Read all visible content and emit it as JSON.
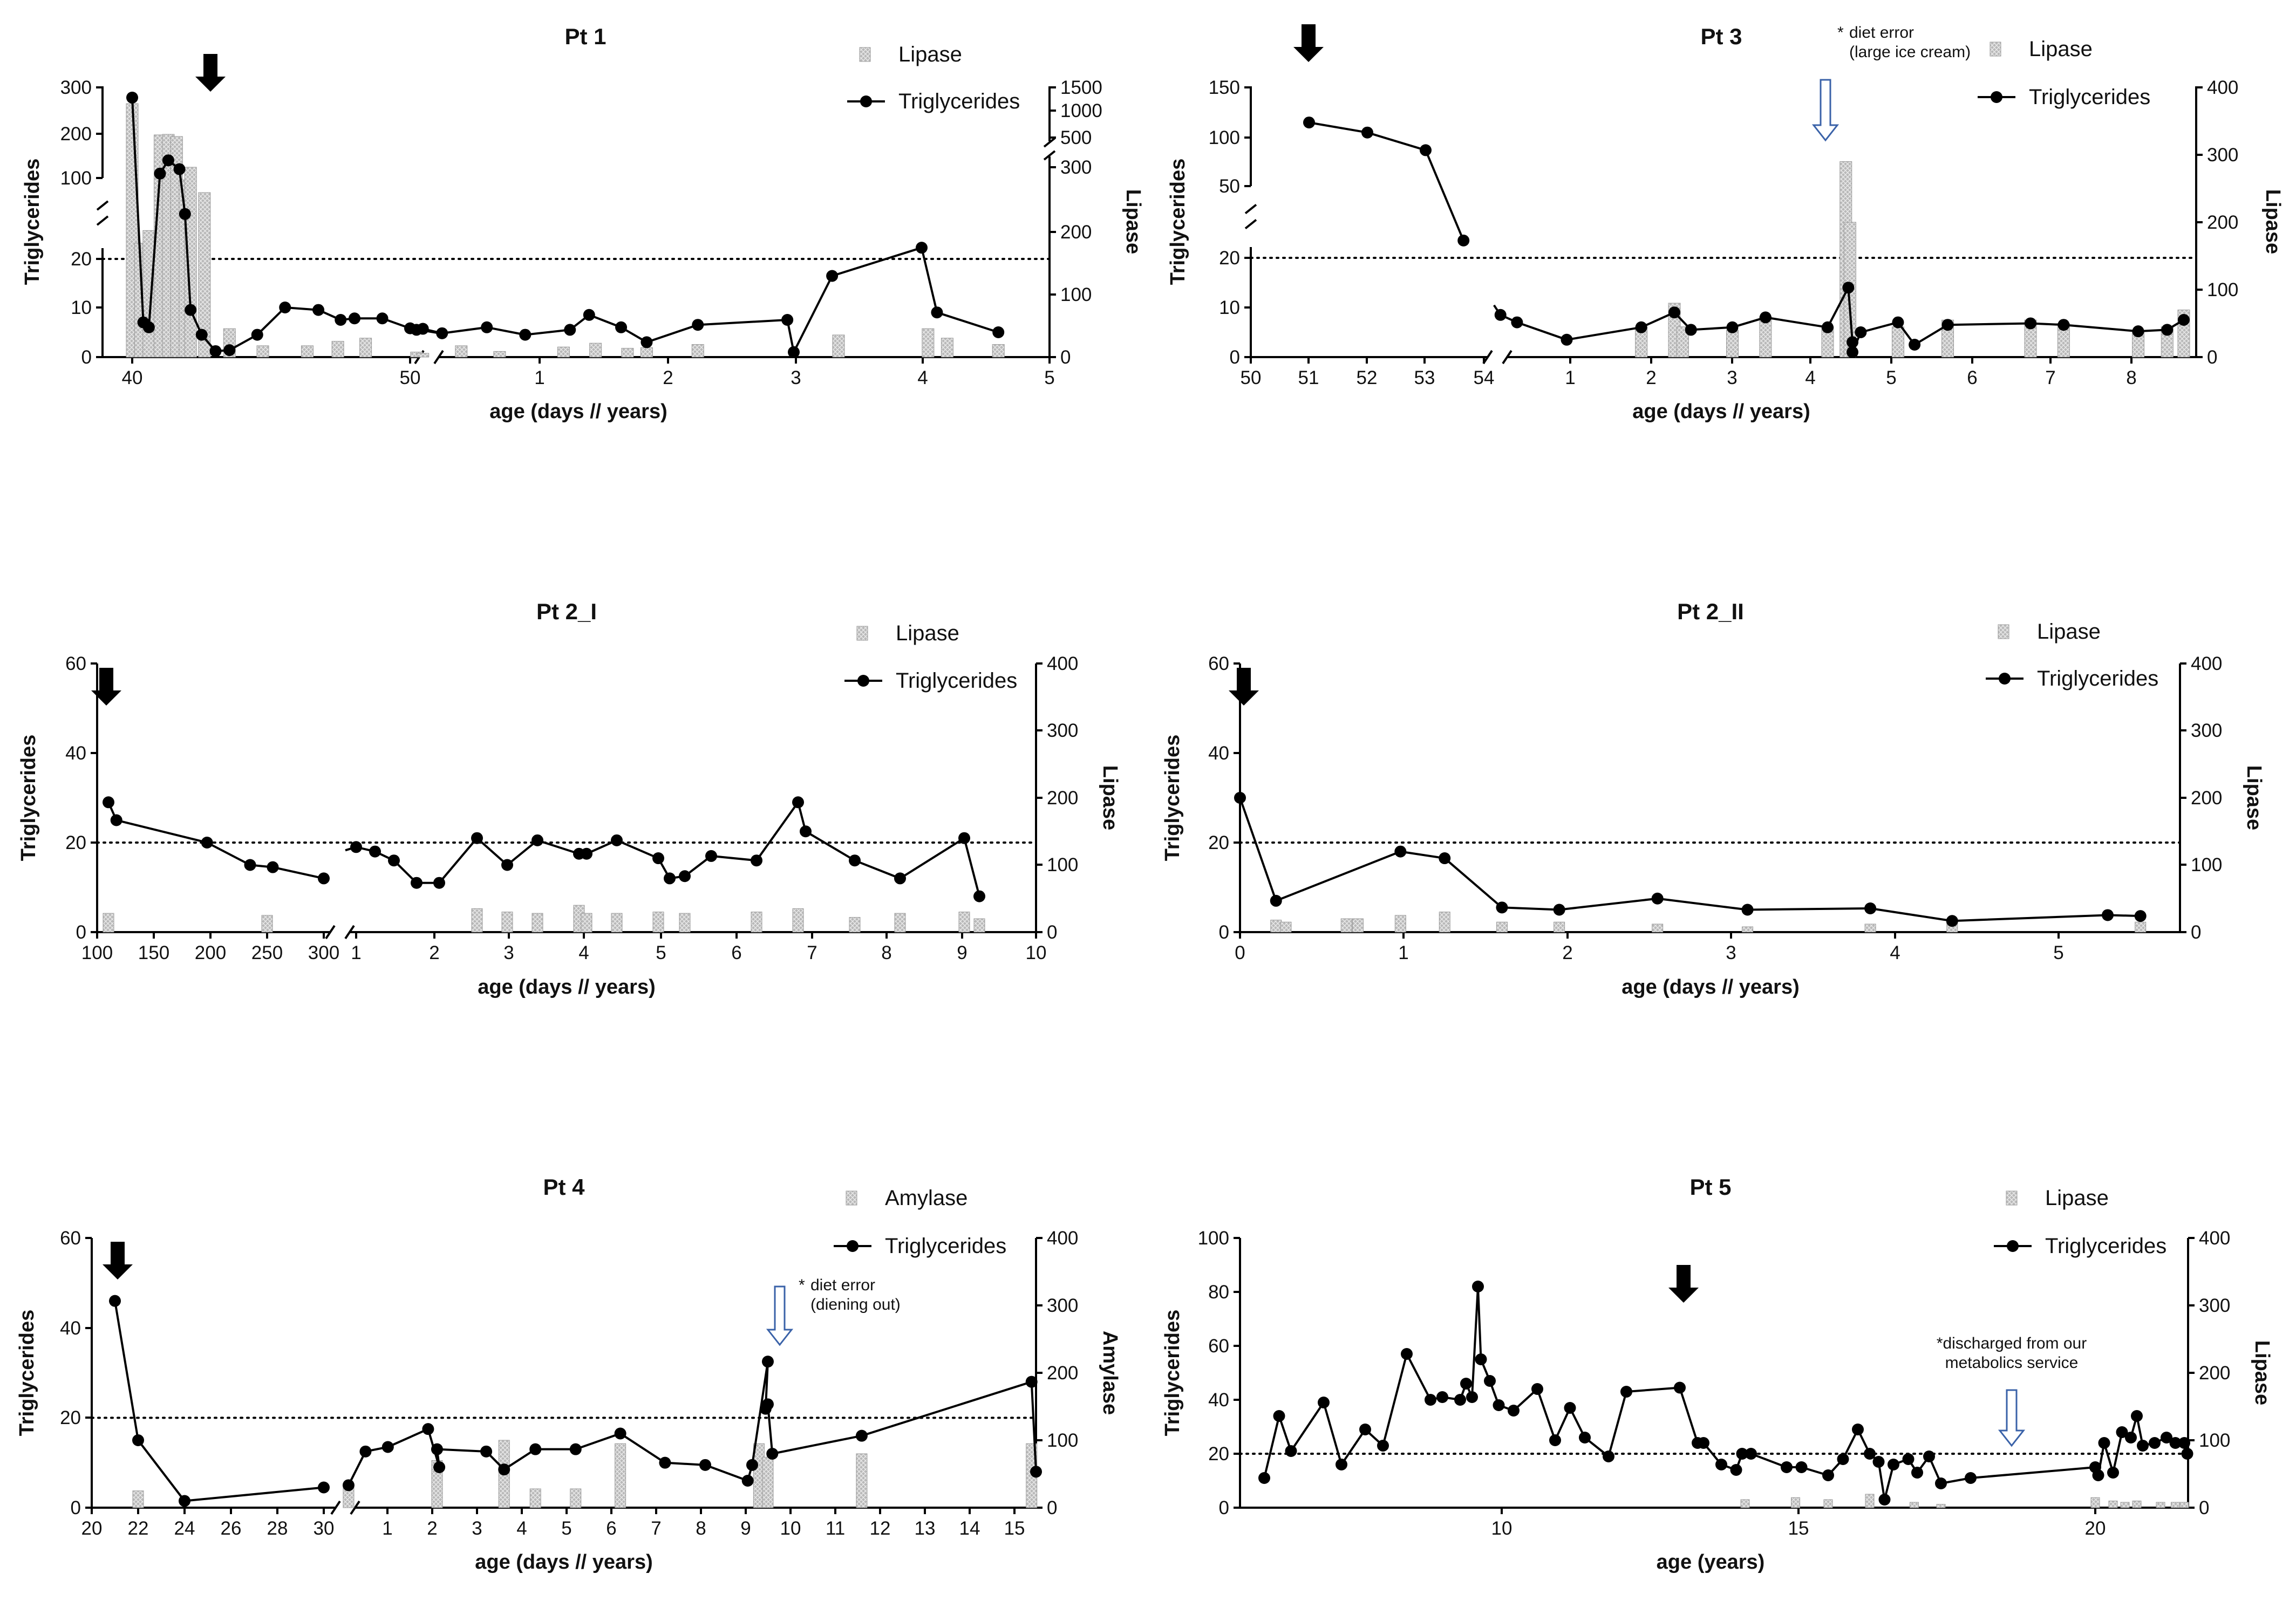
{
  "figure": {
    "panels": [
      {
        "id": "pt1",
        "title": "Pt 1",
        "ylabel": "Triglycerides",
        "y2label": "Lipase",
        "xlabel": "age (days // years)",
        "legend": {
          "bars": "Lipase",
          "line": "Triglycerides"
        }
      },
      {
        "id": "pt3",
        "title": "Pt 3",
        "ylabel": "Triglycerides",
        "y2label": "Lipase",
        "xlabel": "age (days // years)",
        "legend": {
          "bars": "Lipase",
          "line": "Triglycerides"
        },
        "annotation": {
          "star": "*",
          "lines": [
            "diet error",
            "(large ice cream)"
          ]
        }
      },
      {
        "id": "pt2i",
        "title": "Pt 2_I",
        "ylabel": "Triglycerides",
        "y2label": "Lipase",
        "xlabel": "age (days // years)",
        "legend": {
          "bars": "Lipase",
          "line": "Triglycerides"
        }
      },
      {
        "id": "pt2ii",
        "title": "Pt 2_II",
        "ylabel": "Triglycerides",
        "y2label": "Lipase",
        "xlabel": "age (days // years)",
        "legend": {
          "bars": "Lipase",
          "line": "Triglycerides"
        }
      },
      {
        "id": "pt4",
        "title": "Pt 4",
        "ylabel": "Triglycerides",
        "y2label": "Amylase",
        "xlabel": "age (days // years)",
        "legend": {
          "bars": "Amylase",
          "line": "Triglycerides"
        },
        "annotation": {
          "star": "*",
          "lines": [
            "diet error",
            "(diening out)"
          ]
        }
      },
      {
        "id": "pt5",
        "title": "Pt 5",
        "ylabel": "Triglycerides",
        "y2label": "Lipase",
        "xlabel": "age (years)",
        "legend": {
          "bars": "Lipase",
          "line": "Triglycerides"
        },
        "annotation": {
          "star": "",
          "lines": [
            "*discharged from our",
            "metabolics service"
          ]
        }
      }
    ]
  },
  "chart_data": [
    {
      "panel": "pt1",
      "type": "bar+line",
      "title": "Pt 1",
      "threshold": 20,
      "y_ticks": [
        "0",
        "10",
        "20",
        "100",
        "200",
        "300"
      ],
      "y2_ticks": [
        "0",
        "100",
        "200",
        "300",
        "500",
        "1000",
        "1500"
      ],
      "x_ticks": [
        "40",
        "50",
        "1",
        "2",
        "3",
        "4",
        "5"
      ],
      "triglycerides": [
        [
          40,
          278
        ],
        [
          40.4,
          7
        ],
        [
          40.6,
          6
        ],
        [
          41,
          110
        ],
        [
          41.3,
          140
        ],
        [
          41.7,
          120
        ],
        [
          41.9,
          60
        ],
        [
          42.1,
          9.5
        ],
        [
          42.5,
          4.5
        ],
        [
          43,
          1.2
        ],
        [
          43.5,
          1.4
        ],
        [
          44.5,
          4.5
        ],
        [
          45.5,
          10
        ],
        [
          46.7,
          9.5
        ],
        [
          47.5,
          7.5
        ],
        [
          48,
          7.8
        ],
        [
          49,
          7.8
        ],
        [
          50,
          5.8
        ],
        [
          0.05,
          5.5
        ],
        [
          0.1,
          5.7
        ],
        [
          0.25,
          4.8
        ],
        [
          0.6,
          6
        ],
        [
          0.9,
          4.5
        ],
        [
          1.25,
          5.5
        ],
        [
          1.4,
          8.5
        ],
        [
          1.65,
          6
        ],
        [
          1.85,
          3
        ],
        [
          2.25,
          6.5
        ],
        [
          2.95,
          7.5
        ],
        [
          3,
          1
        ],
        [
          3.3,
          16.5
        ],
        [
          4,
          22.5
        ],
        [
          4.12,
          9
        ],
        [
          4.6,
          5
        ]
      ],
      "lipase": [
        [
          40,
          1150
        ],
        [
          40.3,
          180
        ],
        [
          40.6,
          200
        ],
        [
          41,
          550
        ],
        [
          41.3,
          560
        ],
        [
          41.6,
          520
        ],
        [
          41.9,
          280
        ],
        [
          42.1,
          300
        ],
        [
          42.6,
          260
        ],
        [
          43.5,
          45
        ],
        [
          44.7,
          18
        ],
        [
          46.3,
          18
        ],
        [
          47.4,
          25
        ],
        [
          48.4,
          30
        ],
        [
          0.05,
          8
        ],
        [
          0.1,
          6
        ],
        [
          0.4,
          18
        ],
        [
          0.7,
          9
        ],
        [
          1.2,
          16
        ],
        [
          1.45,
          22
        ],
        [
          1.7,
          14
        ],
        [
          1.85,
          15
        ],
        [
          2.25,
          20
        ],
        [
          3.35,
          35
        ],
        [
          4.05,
          45
        ],
        [
          4.2,
          30
        ],
        [
          4.6,
          20
        ]
      ]
    },
    {
      "panel": "pt3",
      "type": "bar+line",
      "title": "Pt 3",
      "threshold": 20,
      "y_ticks": [
        "0",
        "10",
        "20",
        "50",
        "100",
        "150"
      ],
      "y2_ticks": [
        "0",
        "100",
        "200",
        "300",
        "400"
      ],
      "x_ticks": [
        "50",
        "51",
        "52",
        "53",
        "54",
        "1",
        "2",
        "3",
        "4",
        "5",
        "6",
        "7",
        "8"
      ],
      "triglycerides": [
        [
          51,
          115
        ],
        [
          52,
          105
        ],
        [
          53,
          87
        ],
        [
          53.65,
          25
        ],
        [
          0.2,
          8.5
        ],
        [
          0.4,
          7
        ],
        [
          1,
          3.5
        ],
        [
          1.9,
          6
        ],
        [
          2.3,
          9
        ],
        [
          2.5,
          5.5
        ],
        [
          3,
          6
        ],
        [
          3.4,
          8
        ],
        [
          4.15,
          6
        ],
        [
          4.4,
          14
        ],
        [
          4.45,
          3
        ],
        [
          4.45,
          1
        ],
        [
          4.55,
          5
        ],
        [
          5,
          7
        ],
        [
          5.2,
          2.5
        ],
        [
          5.6,
          6.5
        ],
        [
          6.6,
          6.8
        ],
        [
          7,
          6.5
        ],
        [
          7.9,
          5.2
        ],
        [
          8.25,
          5.5
        ],
        [
          8.45,
          7.5
        ]
      ],
      "lipase": [
        [
          1.9,
          45
        ],
        [
          2.3,
          80
        ],
        [
          2.4,
          45
        ],
        [
          3,
          40
        ],
        [
          3.4,
          60
        ],
        [
          4.15,
          45
        ],
        [
          4.37,
          290
        ],
        [
          4.42,
          200
        ],
        [
          5,
          45
        ],
        [
          5.6,
          55
        ],
        [
          6.6,
          55
        ],
        [
          7,
          50
        ],
        [
          7.9,
          40
        ],
        [
          8.25,
          45
        ],
        [
          8.45,
          70
        ]
      ]
    },
    {
      "panel": "pt2i",
      "type": "bar+line",
      "title": "Pt 2_I",
      "threshold": 20,
      "y_ticks": [
        "0",
        "20",
        "40",
        "60"
      ],
      "y2_ticks": [
        "0",
        "100",
        "200",
        "300",
        "400"
      ],
      "x_ticks": [
        "100",
        "150",
        "200",
        "250",
        "300",
        "1",
        "2",
        "3",
        "4",
        "5",
        "6",
        "7",
        "8",
        "9",
        "10"
      ],
      "triglycerides": [
        [
          110,
          29
        ],
        [
          117,
          25
        ],
        [
          197,
          20
        ],
        [
          235,
          15
        ],
        [
          255,
          14.5
        ],
        [
          300,
          12
        ],
        [
          1,
          19
        ],
        [
          1.25,
          18
        ],
        [
          1.5,
          16
        ],
        [
          1.8,
          11
        ],
        [
          2.1,
          11
        ],
        [
          2.6,
          21
        ],
        [
          3,
          15
        ],
        [
          3.4,
          20.5
        ],
        [
          3.95,
          17.5
        ],
        [
          4.05,
          17.5
        ],
        [
          4.45,
          20.5
        ],
        [
          5,
          16.5
        ],
        [
          5.15,
          12
        ],
        [
          5.35,
          12.5
        ],
        [
          5.7,
          17
        ],
        [
          6.3,
          16
        ],
        [
          6.85,
          29
        ],
        [
          6.95,
          22.5
        ],
        [
          7.6,
          16
        ],
        [
          8.2,
          12
        ],
        [
          9.05,
          21
        ],
        [
          9.25,
          8
        ]
      ],
      "lipase": [
        [
          110,
          28
        ],
        [
          250,
          25
        ],
        [
          2.6,
          35
        ],
        [
          3,
          30
        ],
        [
          3.4,
          28
        ],
        [
          3.95,
          40
        ],
        [
          4.05,
          28
        ],
        [
          4.45,
          28
        ],
        [
          5,
          30
        ],
        [
          5.35,
          28
        ],
        [
          6.3,
          30
        ],
        [
          6.85,
          35
        ],
        [
          7.6,
          22
        ],
        [
          8.2,
          28
        ],
        [
          9.05,
          30
        ],
        [
          9.25,
          20
        ]
      ]
    },
    {
      "panel": "pt2ii",
      "type": "bar+line",
      "title": "Pt 2_II",
      "threshold": 20,
      "y_ticks": [
        "0",
        "20",
        "40",
        "60"
      ],
      "y2_ticks": [
        "0",
        "100",
        "200",
        "300",
        "400"
      ],
      "x_ticks": [
        "0",
        "1",
        "2",
        "3",
        "4",
        "5"
      ],
      "triglycerides": [
        [
          0,
          30
        ],
        [
          0.22,
          7
        ],
        [
          0.98,
          18
        ],
        [
          1.25,
          16.5
        ],
        [
          1.6,
          5.5
        ],
        [
          1.95,
          5
        ],
        [
          2.55,
          7.5
        ],
        [
          3.1,
          5
        ],
        [
          3.85,
          5.3
        ],
        [
          4.35,
          2.5
        ],
        [
          5.3,
          3.8
        ],
        [
          5.5,
          3.6
        ]
      ],
      "lipase": [
        [
          0.22,
          18
        ],
        [
          0.28,
          15
        ],
        [
          0.65,
          20
        ],
        [
          0.72,
          20
        ],
        [
          0.98,
          25
        ],
        [
          1.25,
          30
        ],
        [
          1.6,
          15
        ],
        [
          1.95,
          15
        ],
        [
          2.55,
          12
        ],
        [
          3.1,
          8
        ],
        [
          3.85,
          12
        ],
        [
          4.35,
          15
        ],
        [
          5.5,
          15
        ]
      ]
    },
    {
      "panel": "pt4",
      "type": "bar+line",
      "title": "Pt 4",
      "threshold": 20,
      "y_ticks": [
        "0",
        "20",
        "40",
        "60"
      ],
      "y2_ticks": [
        "0",
        "100",
        "200",
        "300",
        "400"
      ],
      "x_ticks": [
        "20",
        "22",
        "24",
        "26",
        "28",
        "30",
        "1",
        "2",
        "3",
        "4",
        "5",
        "6",
        "7",
        "8",
        "9",
        "10",
        "11",
        "12",
        "13",
        "14",
        "15"
      ],
      "triglycerides": [
        [
          21,
          46
        ],
        [
          22,
          15
        ],
        [
          24,
          1.5
        ],
        [
          30,
          4.5
        ],
        [
          0.12,
          5
        ],
        [
          0.5,
          12.5
        ],
        [
          1,
          13.5
        ],
        [
          1.9,
          17.5
        ],
        [
          2.15,
          9
        ],
        [
          2.1,
          13
        ],
        [
          3.2,
          12.5
        ],
        [
          3.6,
          8.5
        ],
        [
          4.3,
          13
        ],
        [
          5.2,
          13
        ],
        [
          6.2,
          16.5
        ],
        [
          7.2,
          10
        ],
        [
          8.1,
          9.5
        ],
        [
          9.05,
          6
        ],
        [
          9.15,
          9.5
        ],
        [
          9.5,
          32.5
        ],
        [
          9.45,
          22
        ],
        [
          9.5,
          23
        ],
        [
          9.6,
          12
        ],
        [
          11.6,
          16
        ],
        [
          15.4,
          28
        ],
        [
          15.5,
          8
        ]
      ],
      "lipase": [
        [
          22,
          25
        ],
        [
          0.12,
          30
        ],
        [
          2.1,
          70
        ],
        [
          3.6,
          100
        ],
        [
          4.3,
          28
        ],
        [
          5.2,
          28
        ],
        [
          6.2,
          95
        ],
        [
          9.3,
          95
        ],
        [
          9.5,
          75
        ],
        [
          11.6,
          80
        ],
        [
          15.4,
          95
        ]
      ]
    },
    {
      "panel": "pt5",
      "type": "bar+line",
      "title": "Pt 5",
      "threshold": 20,
      "y_ticks": [
        "0",
        "20",
        "40",
        "60",
        "80",
        "100"
      ],
      "y2_ticks": [
        "0",
        "100",
        "200",
        "300",
        "400"
      ],
      "x_ticks": [
        "10",
        "15",
        "20"
      ],
      "triglycerides": [
        [
          6,
          11
        ],
        [
          6.25,
          34
        ],
        [
          6.45,
          21
        ],
        [
          7,
          39
        ],
        [
          7.3,
          16
        ],
        [
          7.7,
          29
        ],
        [
          8,
          23
        ],
        [
          8.4,
          57
        ],
        [
          8.8,
          40
        ],
        [
          9,
          41
        ],
        [
          9.3,
          40
        ],
        [
          9.4,
          46
        ],
        [
          9.5,
          41
        ],
        [
          9.6,
          82
        ],
        [
          9.65,
          55
        ],
        [
          9.8,
          47
        ],
        [
          9.95,
          38
        ],
        [
          10.2,
          36
        ],
        [
          10.6,
          44
        ],
        [
          10.9,
          25
        ],
        [
          11.15,
          37
        ],
        [
          11.4,
          26
        ],
        [
          11.8,
          19
        ],
        [
          12.1,
          43
        ],
        [
          13,
          44.5
        ],
        [
          13.3,
          24
        ],
        [
          13.4,
          24
        ],
        [
          13.7,
          16
        ],
        [
          13.95,
          14
        ],
        [
          14.05,
          20
        ],
        [
          14.2,
          20
        ],
        [
          14.8,
          15
        ],
        [
          15.05,
          15
        ],
        [
          15.5,
          12
        ],
        [
          15.75,
          18
        ],
        [
          16.0,
          29
        ],
        [
          16.2,
          20
        ],
        [
          16.35,
          17
        ],
        [
          16.45,
          3
        ],
        [
          16.6,
          16
        ],
        [
          16.85,
          18
        ],
        [
          17.0,
          13
        ],
        [
          17.2,
          19
        ],
        [
          17.4,
          9
        ],
        [
          17.9,
          11
        ],
        [
          20.0,
          15
        ],
        [
          20.05,
          12
        ],
        [
          20.15,
          24
        ],
        [
          20.3,
          13
        ],
        [
          20.45,
          28
        ],
        [
          20.6,
          26
        ],
        [
          20.7,
          34
        ],
        [
          20.8,
          23
        ],
        [
          21.0,
          24
        ],
        [
          21.2,
          26
        ],
        [
          21.35,
          24
        ],
        [
          21.5,
          24
        ],
        [
          21.55,
          20
        ]
      ],
      "lipase": [
        [
          14.1,
          12
        ],
        [
          14.95,
          15
        ],
        [
          15.5,
          12
        ],
        [
          16.2,
          20
        ],
        [
          16.95,
          8
        ],
        [
          17.4,
          5
        ],
        [
          20.0,
          15
        ],
        [
          20.3,
          10
        ],
        [
          20.5,
          8
        ],
        [
          20.7,
          10
        ],
        [
          21.1,
          8
        ],
        [
          21.35,
          8
        ],
        [
          21.5,
          8
        ]
      ]
    }
  ]
}
